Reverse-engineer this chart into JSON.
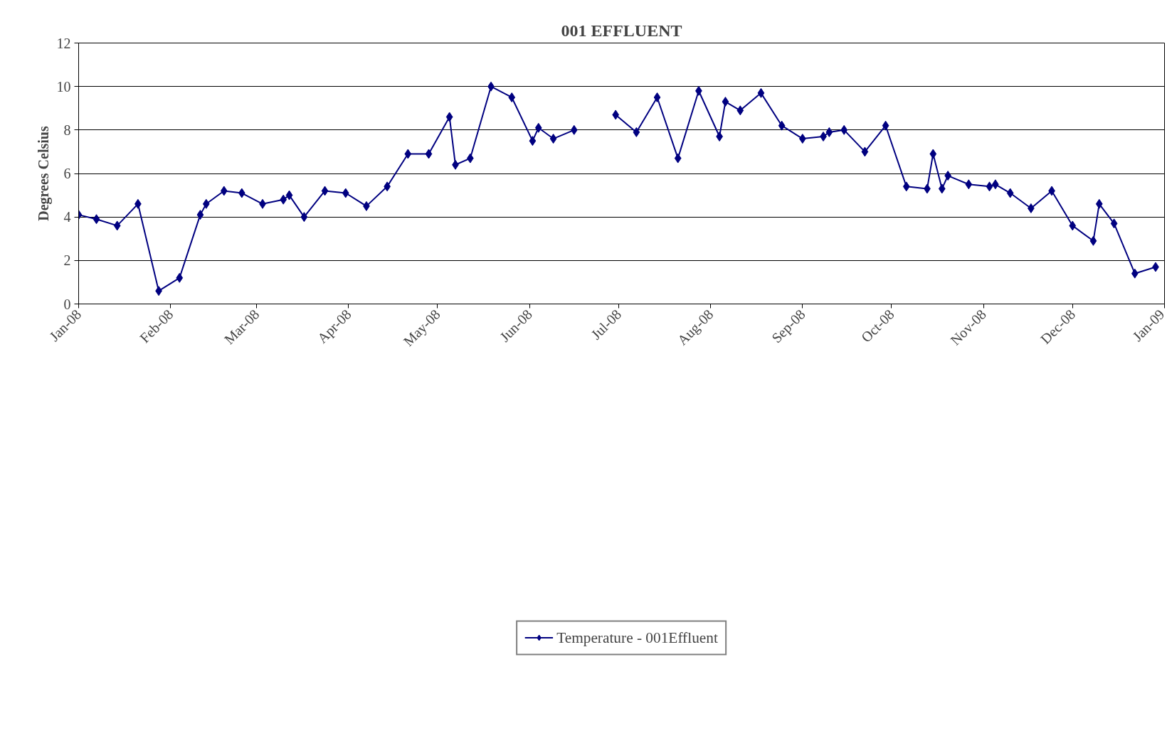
{
  "chart_data": {
    "type": "line",
    "title": "001 EFFLUENT",
    "ylabel": "Degrees Celsius",
    "x": [
      "2008-01-01",
      "2008-01-07",
      "2008-01-14",
      "2008-01-21",
      "2008-01-28",
      "2008-02-04",
      "2008-02-11",
      "2008-02-13",
      "2008-02-19",
      "2008-02-25",
      "2008-03-03",
      "2008-03-10",
      "2008-03-12",
      "2008-03-17",
      "2008-03-24",
      "2008-03-31",
      "2008-04-07",
      "2008-04-14",
      "2008-04-21",
      "2008-04-28",
      "2008-05-05",
      "2008-05-07",
      "2008-05-12",
      "2008-05-19",
      "2008-05-26",
      "2008-06-02",
      "2008-06-04",
      "2008-06-09",
      "2008-06-16",
      "2008-06-23",
      "2008-06-30",
      "2008-07-07",
      "2008-07-14",
      "2008-07-21",
      "2008-07-28",
      "2008-08-04",
      "2008-08-06",
      "2008-08-11",
      "2008-08-18",
      "2008-08-25",
      "2008-09-01",
      "2008-09-08",
      "2008-09-10",
      "2008-09-15",
      "2008-09-22",
      "2008-09-29",
      "2008-10-06",
      "2008-10-13",
      "2008-10-15",
      "2008-10-18",
      "2008-10-20",
      "2008-10-27",
      "2008-11-03",
      "2008-11-05",
      "2008-11-10",
      "2008-11-17",
      "2008-11-24",
      "2008-12-01",
      "2008-12-08",
      "2008-12-10",
      "2008-12-15",
      "2008-12-22",
      "2008-12-29"
    ],
    "series": [
      {
        "name": "Temperature - 001Effluent",
        "color": "#000080",
        "values": [
          4.1,
          3.9,
          3.6,
          4.6,
          0.6,
          1.2,
          4.1,
          4.6,
          5.2,
          5.1,
          4.6,
          4.8,
          5.0,
          4.0,
          5.2,
          5.1,
          4.5,
          5.4,
          6.9,
          6.9,
          8.6,
          6.4,
          6.7,
          10.0,
          9.5,
          7.5,
          8.1,
          7.6,
          8.0,
          null,
          8.7,
          7.9,
          9.5,
          6.7,
          9.8,
          7.7,
          9.3,
          8.9,
          9.7,
          8.2,
          7.6,
          7.7,
          7.9,
          8.0,
          7.0,
          8.2,
          5.4,
          5.3,
          6.9,
          5.3,
          5.9,
          5.5,
          5.4,
          5.5,
          5.1,
          4.4,
          5.2,
          3.6,
          2.9,
          4.6,
          3.7,
          1.4,
          1.7
        ]
      }
    ],
    "xlim": [
      "2008-01-01",
      "2009-01-01"
    ],
    "xticks": [
      {
        "value": "2008-01-01",
        "label": "Jan-08"
      },
      {
        "value": "2008-02-01",
        "label": "Feb-08"
      },
      {
        "value": "2008-03-01",
        "label": "Mar-08"
      },
      {
        "value": "2008-04-01",
        "label": "Apr-08"
      },
      {
        "value": "2008-05-01",
        "label": "May-08"
      },
      {
        "value": "2008-06-01",
        "label": "Jun-08"
      },
      {
        "value": "2008-07-01",
        "label": "Jul-08"
      },
      {
        "value": "2008-08-01",
        "label": "Aug-08"
      },
      {
        "value": "2008-09-01",
        "label": "Sep-08"
      },
      {
        "value": "2008-10-01",
        "label": "Oct-08"
      },
      {
        "value": "2008-11-01",
        "label": "Nov-08"
      },
      {
        "value": "2008-12-01",
        "label": "Dec-08"
      },
      {
        "value": "2009-01-01",
        "label": "Jan-09"
      }
    ],
    "ylim": [
      0,
      12
    ],
    "yticks": [
      0,
      2,
      4,
      6,
      8,
      10,
      12
    ],
    "grid": "y",
    "legend": "bottom",
    "marker": "diamond",
    "line_style": "solid"
  }
}
